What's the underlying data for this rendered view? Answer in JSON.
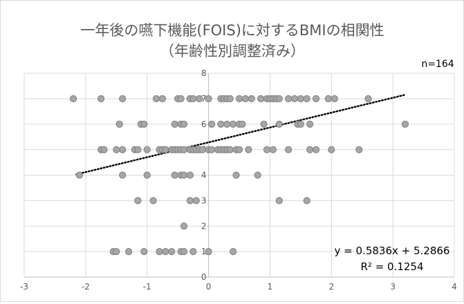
{
  "chart_data": {
    "type": "scatter",
    "title_line1": "一年後の嚥下機能(FOIS)に対するBMIの相関性",
    "title_line2": "（年齢性別調整済み）",
    "sample_label": "n=164",
    "xlim": [
      -3,
      4
    ],
    "ylim": [
      0,
      8
    ],
    "x_ticks": [
      "-3",
      "-2",
      "-1",
      "0",
      "1",
      "2",
      "3",
      "4"
    ],
    "y_ticks": [
      "0",
      "1",
      "2",
      "3",
      "4",
      "5",
      "6",
      "7",
      "8"
    ],
    "grid": true,
    "marker_color": "#a6a6a6",
    "marker_edge": "#7f7f7f",
    "trendline": {
      "slope": 0.5836,
      "intercept": 5.2866,
      "x_range": [
        -2.15,
        3.2
      ],
      "equation": "y = 0.5836x + 5.2866",
      "r_squared": "R² = 0.1254"
    },
    "points": [
      {
        "x": -2.2,
        "y": 7
      },
      {
        "x": -1.75,
        "y": 7
      },
      {
        "x": -1.4,
        "y": 7
      },
      {
        "x": -0.85,
        "y": 7
      },
      {
        "x": -0.75,
        "y": 7
      },
      {
        "x": -0.5,
        "y": 7
      },
      {
        "x": -0.45,
        "y": 7
      },
      {
        "x": -0.3,
        "y": 7
      },
      {
        "x": -0.25,
        "y": 7
      },
      {
        "x": -0.15,
        "y": 7
      },
      {
        "x": 0.0,
        "y": 7
      },
      {
        "x": 0.2,
        "y": 7
      },
      {
        "x": 0.25,
        "y": 7
      },
      {
        "x": 0.3,
        "y": 7
      },
      {
        "x": 0.35,
        "y": 7
      },
      {
        "x": 0.5,
        "y": 7
      },
      {
        "x": 0.6,
        "y": 7
      },
      {
        "x": 0.7,
        "y": 7
      },
      {
        "x": 0.85,
        "y": 7
      },
      {
        "x": 0.95,
        "y": 7
      },
      {
        "x": 1.0,
        "y": 7
      },
      {
        "x": 1.05,
        "y": 7
      },
      {
        "x": 1.1,
        "y": 7
      },
      {
        "x": 1.15,
        "y": 7
      },
      {
        "x": 1.3,
        "y": 7
      },
      {
        "x": 1.4,
        "y": 7
      },
      {
        "x": 1.5,
        "y": 7
      },
      {
        "x": 1.6,
        "y": 7
      },
      {
        "x": 1.75,
        "y": 7
      },
      {
        "x": 1.95,
        "y": 7
      },
      {
        "x": 2.05,
        "y": 7
      },
      {
        "x": 2.6,
        "y": 7
      },
      {
        "x": -1.45,
        "y": 6
      },
      {
        "x": -1.1,
        "y": 6
      },
      {
        "x": -1.05,
        "y": 6
      },
      {
        "x": -0.55,
        "y": 6
      },
      {
        "x": -0.45,
        "y": 6
      },
      {
        "x": -0.4,
        "y": 6
      },
      {
        "x": 0.05,
        "y": 6
      },
      {
        "x": 0.2,
        "y": 6
      },
      {
        "x": 0.3,
        "y": 6
      },
      {
        "x": 0.4,
        "y": 6
      },
      {
        "x": 0.5,
        "y": 6
      },
      {
        "x": 0.55,
        "y": 6
      },
      {
        "x": 0.9,
        "y": 6
      },
      {
        "x": 1.15,
        "y": 6
      },
      {
        "x": 1.45,
        "y": 6
      },
      {
        "x": 1.5,
        "y": 6
      },
      {
        "x": 1.65,
        "y": 6
      },
      {
        "x": 3.2,
        "y": 6
      },
      {
        "x": -1.75,
        "y": 5
      },
      {
        "x": -1.7,
        "y": 5
      },
      {
        "x": -1.5,
        "y": 5
      },
      {
        "x": -1.4,
        "y": 5
      },
      {
        "x": -1.2,
        "y": 5
      },
      {
        "x": -1.15,
        "y": 5
      },
      {
        "x": -1.0,
        "y": 5
      },
      {
        "x": -0.8,
        "y": 5
      },
      {
        "x": -0.75,
        "y": 5
      },
      {
        "x": -0.7,
        "y": 5
      },
      {
        "x": -0.6,
        "y": 5
      },
      {
        "x": -0.55,
        "y": 5
      },
      {
        "x": -0.5,
        "y": 5
      },
      {
        "x": -0.45,
        "y": 5
      },
      {
        "x": -0.4,
        "y": 5
      },
      {
        "x": -0.3,
        "y": 5
      },
      {
        "x": -0.25,
        "y": 5
      },
      {
        "x": -0.2,
        "y": 5
      },
      {
        "x": -0.15,
        "y": 5
      },
      {
        "x": -0.1,
        "y": 5
      },
      {
        "x": 0.0,
        "y": 5
      },
      {
        "x": 0.05,
        "y": 5
      },
      {
        "x": 0.15,
        "y": 5
      },
      {
        "x": 0.2,
        "y": 5
      },
      {
        "x": 0.25,
        "y": 5
      },
      {
        "x": 0.3,
        "y": 5
      },
      {
        "x": 0.35,
        "y": 5
      },
      {
        "x": 0.45,
        "y": 5
      },
      {
        "x": 0.5,
        "y": 5
      },
      {
        "x": 0.65,
        "y": 5
      },
      {
        "x": 0.95,
        "y": 5
      },
      {
        "x": 1.05,
        "y": 5
      },
      {
        "x": 1.3,
        "y": 5
      },
      {
        "x": 1.65,
        "y": 5
      },
      {
        "x": 1.75,
        "y": 5
      },
      {
        "x": 2.0,
        "y": 5
      },
      {
        "x": 2.45,
        "y": 5
      },
      {
        "x": -2.1,
        "y": 4
      },
      {
        "x": -1.4,
        "y": 4
      },
      {
        "x": -1.0,
        "y": 4
      },
      {
        "x": -0.55,
        "y": 4
      },
      {
        "x": -0.45,
        "y": 4
      },
      {
        "x": -0.4,
        "y": 4
      },
      {
        "x": -0.3,
        "y": 4
      },
      {
        "x": 0.45,
        "y": 4
      },
      {
        "x": 0.8,
        "y": 4
      },
      {
        "x": -1.15,
        "y": 3
      },
      {
        "x": -0.9,
        "y": 3
      },
      {
        "x": -0.3,
        "y": 3
      },
      {
        "x": -0.2,
        "y": 3
      },
      {
        "x": 1.15,
        "y": 3
      },
      {
        "x": 1.6,
        "y": 3
      },
      {
        "x": -0.4,
        "y": 2
      },
      {
        "x": -1.55,
        "y": 1
      },
      {
        "x": -1.5,
        "y": 1
      },
      {
        "x": -1.3,
        "y": 1
      },
      {
        "x": -1.05,
        "y": 1
      },
      {
        "x": -0.8,
        "y": 1
      },
      {
        "x": -0.7,
        "y": 1
      },
      {
        "x": -0.6,
        "y": 1
      },
      {
        "x": -0.45,
        "y": 1
      },
      {
        "x": -0.4,
        "y": 1
      },
      {
        "x": -0.25,
        "y": 1
      },
      {
        "x": 0.0,
        "y": 1
      },
      {
        "x": 0.4,
        "y": 1
      }
    ]
  }
}
